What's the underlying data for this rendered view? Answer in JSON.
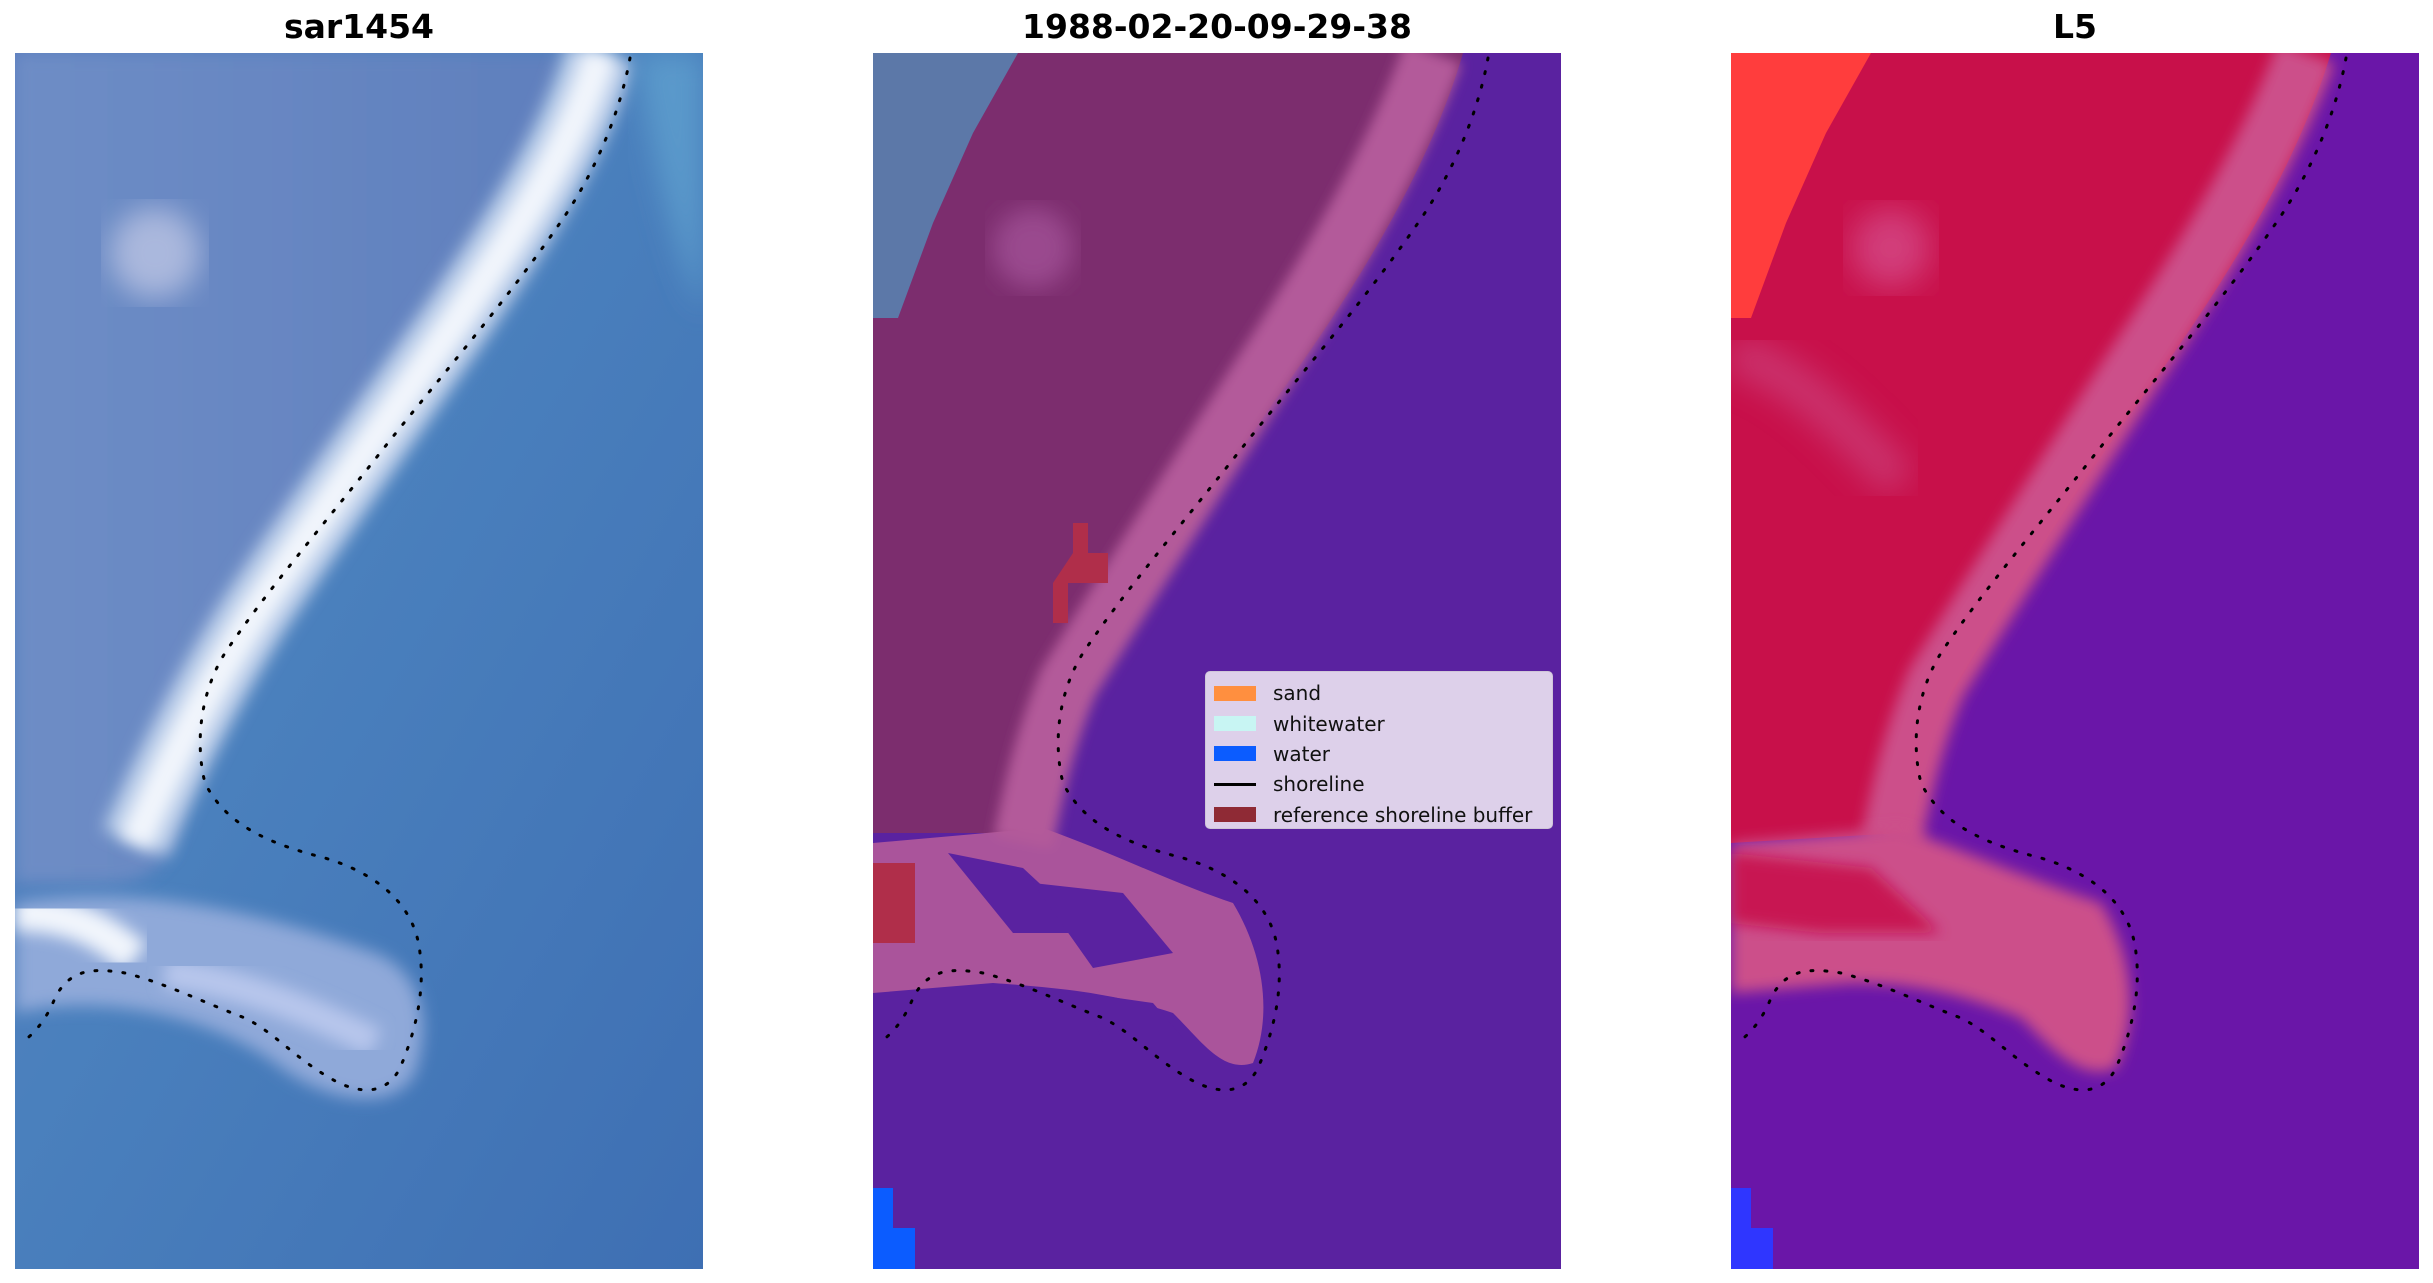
{
  "panels": [
    {
      "title": "sar1454",
      "kind": "sar-rgb-image"
    },
    {
      "title": "1988-02-20-09-29-38",
      "kind": "classified-image"
    },
    {
      "title": "L5",
      "kind": "probability-image"
    }
  ],
  "legend": {
    "items": [
      {
        "label": "sand",
        "type": "patch",
        "color": "#ff8f3f"
      },
      {
        "label": "whitewater",
        "type": "patch",
        "color": "#c8f5f3"
      },
      {
        "label": "water",
        "type": "patch",
        "color": "#0b5cff"
      },
      {
        "label": "shoreline",
        "type": "line",
        "color": "#000000"
      },
      {
        "label": "reference shoreline buffer",
        "type": "patch",
        "color": "#8f2a35"
      }
    ]
  },
  "colors": {
    "shoreline": "#000000",
    "sar_water": "#3f78b8",
    "sar_land": "#6f8cc4",
    "sar_foam": "#eef3fb",
    "class_water": "#5a22a0",
    "class_land": "#7c2d6e",
    "class_surf": "#b35a9a",
    "class_buffer": "#b02e4a",
    "class_slate": "#5c78a8",
    "class_blue": "#0b5cff",
    "prob_land": "#c8104a",
    "prob_water": "#6a16a8",
    "prob_surf": "#cc4f8a",
    "prob_red": "#ff3d3d",
    "prob_blue": "#2f36ff"
  }
}
